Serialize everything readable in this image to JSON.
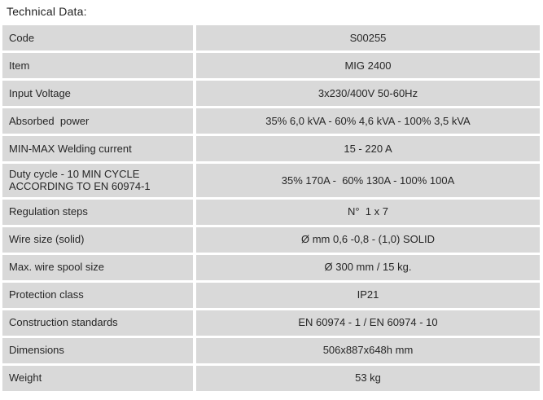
{
  "page": {
    "title": "Technical Data:"
  },
  "colors": {
    "page_background": "#ffffff",
    "cell_background": "#d9d9d9",
    "gutter": "#ffffff",
    "text": "#262626"
  },
  "table": {
    "rows": [
      {
        "label": "Code",
        "value": "S00255"
      },
      {
        "label": "Item",
        "value": "MIG 2400"
      },
      {
        "label": "Input Voltage",
        "value": "3x230/400V 50-60Hz"
      },
      {
        "label": "Absorbed  power",
        "value": "35% 6,0 kVA - 60% 4,6 kVA - 100% 3,5 kVA"
      },
      {
        "label": "MIN-MAX Welding current",
        "value": "15 - 220 A"
      },
      {
        "label": "Duty cycle - 10 MIN CYCLE\nACCORDING TO EN 60974-1",
        "value": "35% 170A -  60% 130A - 100% 100A"
      },
      {
        "label": "Regulation steps",
        "value": "N°  1 x 7"
      },
      {
        "label": "Wire size (solid)",
        "value": "Ø mm 0,6 -0,8 - (1,0) SOLID"
      },
      {
        "label": "Max. wire spool size",
        "value": "Ø 300 mm / 15 kg."
      },
      {
        "label": "Protection class",
        "value": "IP21"
      },
      {
        "label": "Construction standards",
        "value": "EN 60974 - 1 / EN 60974 - 10"
      },
      {
        "label": "Dimensions",
        "value": "506x887x648h mm"
      },
      {
        "label": "Weight",
        "value": "53 kg"
      }
    ]
  }
}
